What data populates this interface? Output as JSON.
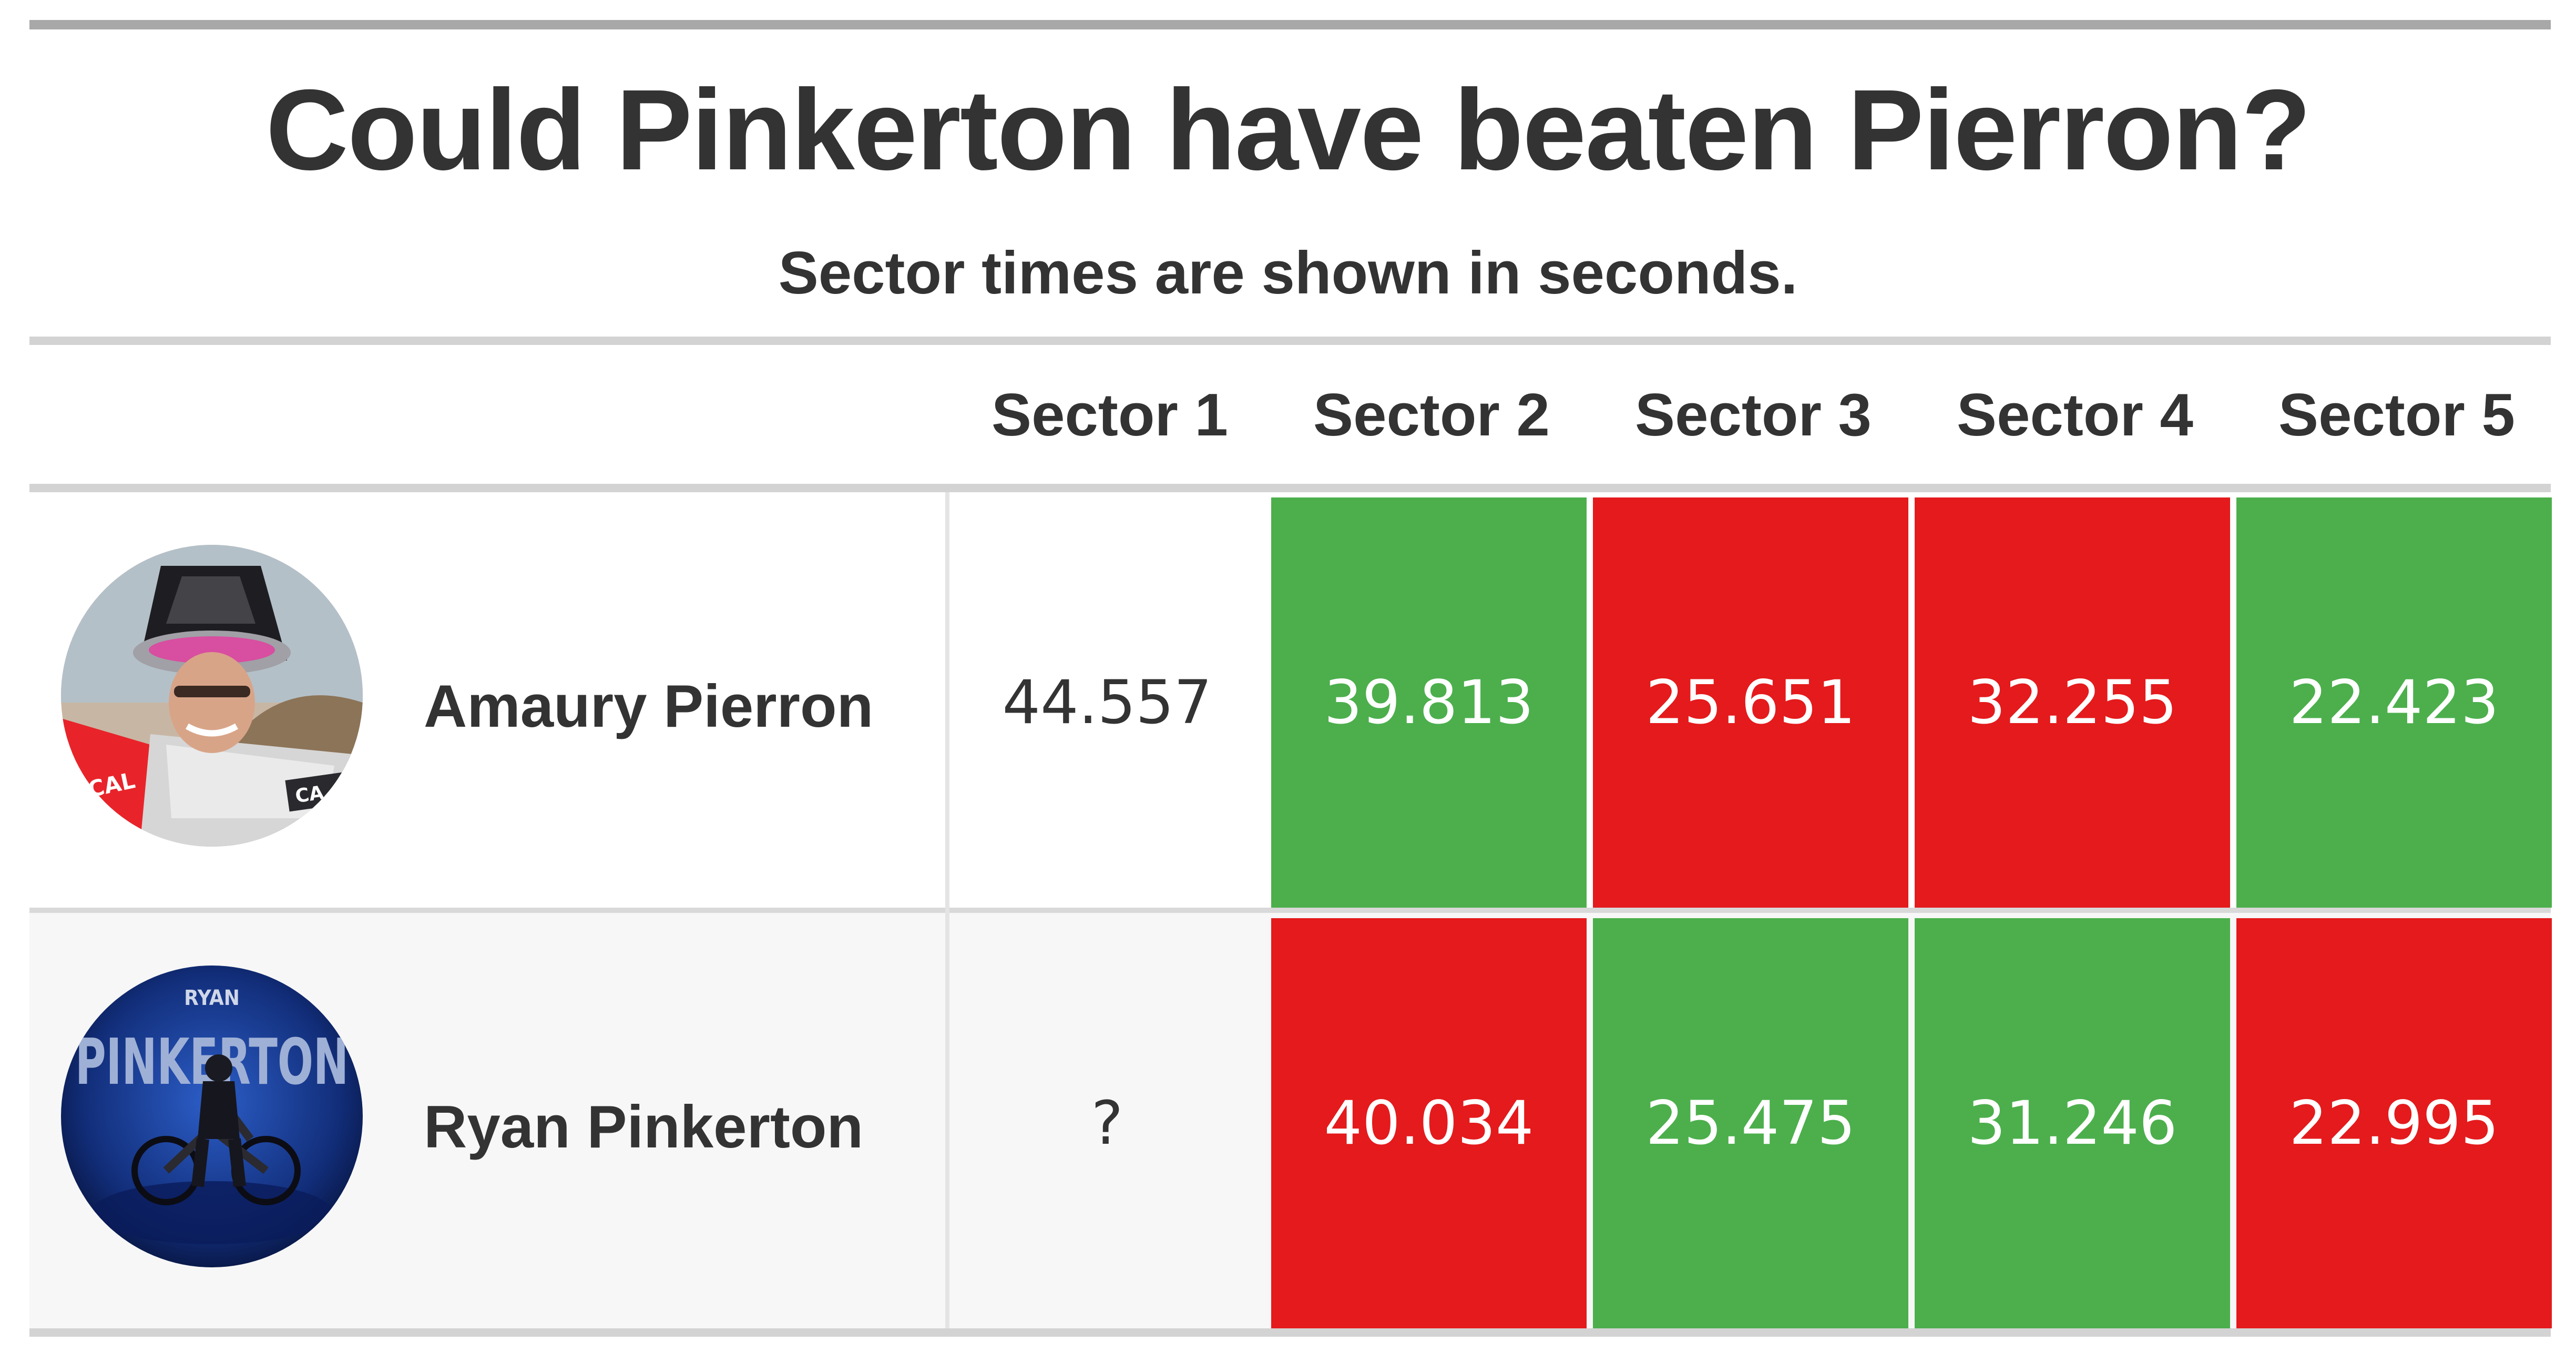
{
  "title": "Could Pinkerton have beaten Pierron?",
  "subtitle": "Sector times are shown in seconds.",
  "columns": [
    "Sector 1",
    "Sector 2",
    "Sector 3",
    "Sector 4",
    "Sector 5"
  ],
  "colors": {
    "faster": "#4caf4c",
    "slower": "#e41a1c",
    "text": "#333333"
  },
  "rows": [
    {
      "name": "Amaury Pierron",
      "avatar_icon": "rider-photo-amaury-pierron",
      "times": [
        "44.557",
        "39.813",
        "25.651",
        "32.255",
        "22.423"
      ],
      "status": [
        "none",
        "faster",
        "slower",
        "slower",
        "faster"
      ]
    },
    {
      "name": "Ryan Pinkerton",
      "avatar_icon": "rider-poster-ryan-pinkerton",
      "avatar_text_small": "RYAN",
      "avatar_text_large": "PINKERTON",
      "times": [
        "?",
        "40.034",
        "25.475",
        "31.246",
        "22.995"
      ],
      "status": [
        "none",
        "slower",
        "faster",
        "faster",
        "slower"
      ]
    }
  ],
  "chart_data": {
    "type": "table",
    "title": "Could Pinkerton have beaten Pierron?",
    "subtitle": "Sector times are shown in seconds.",
    "columns": [
      "Sector 1",
      "Sector 2",
      "Sector 3",
      "Sector 4",
      "Sector 5"
    ],
    "rows": [
      {
        "name": "Amaury Pierron",
        "values": [
          44.557,
          39.813,
          25.651,
          32.255,
          22.423
        ]
      },
      {
        "name": "Ryan Pinkerton",
        "values": [
          null,
          40.034,
          25.475,
          31.246,
          22.995
        ]
      }
    ]
  }
}
